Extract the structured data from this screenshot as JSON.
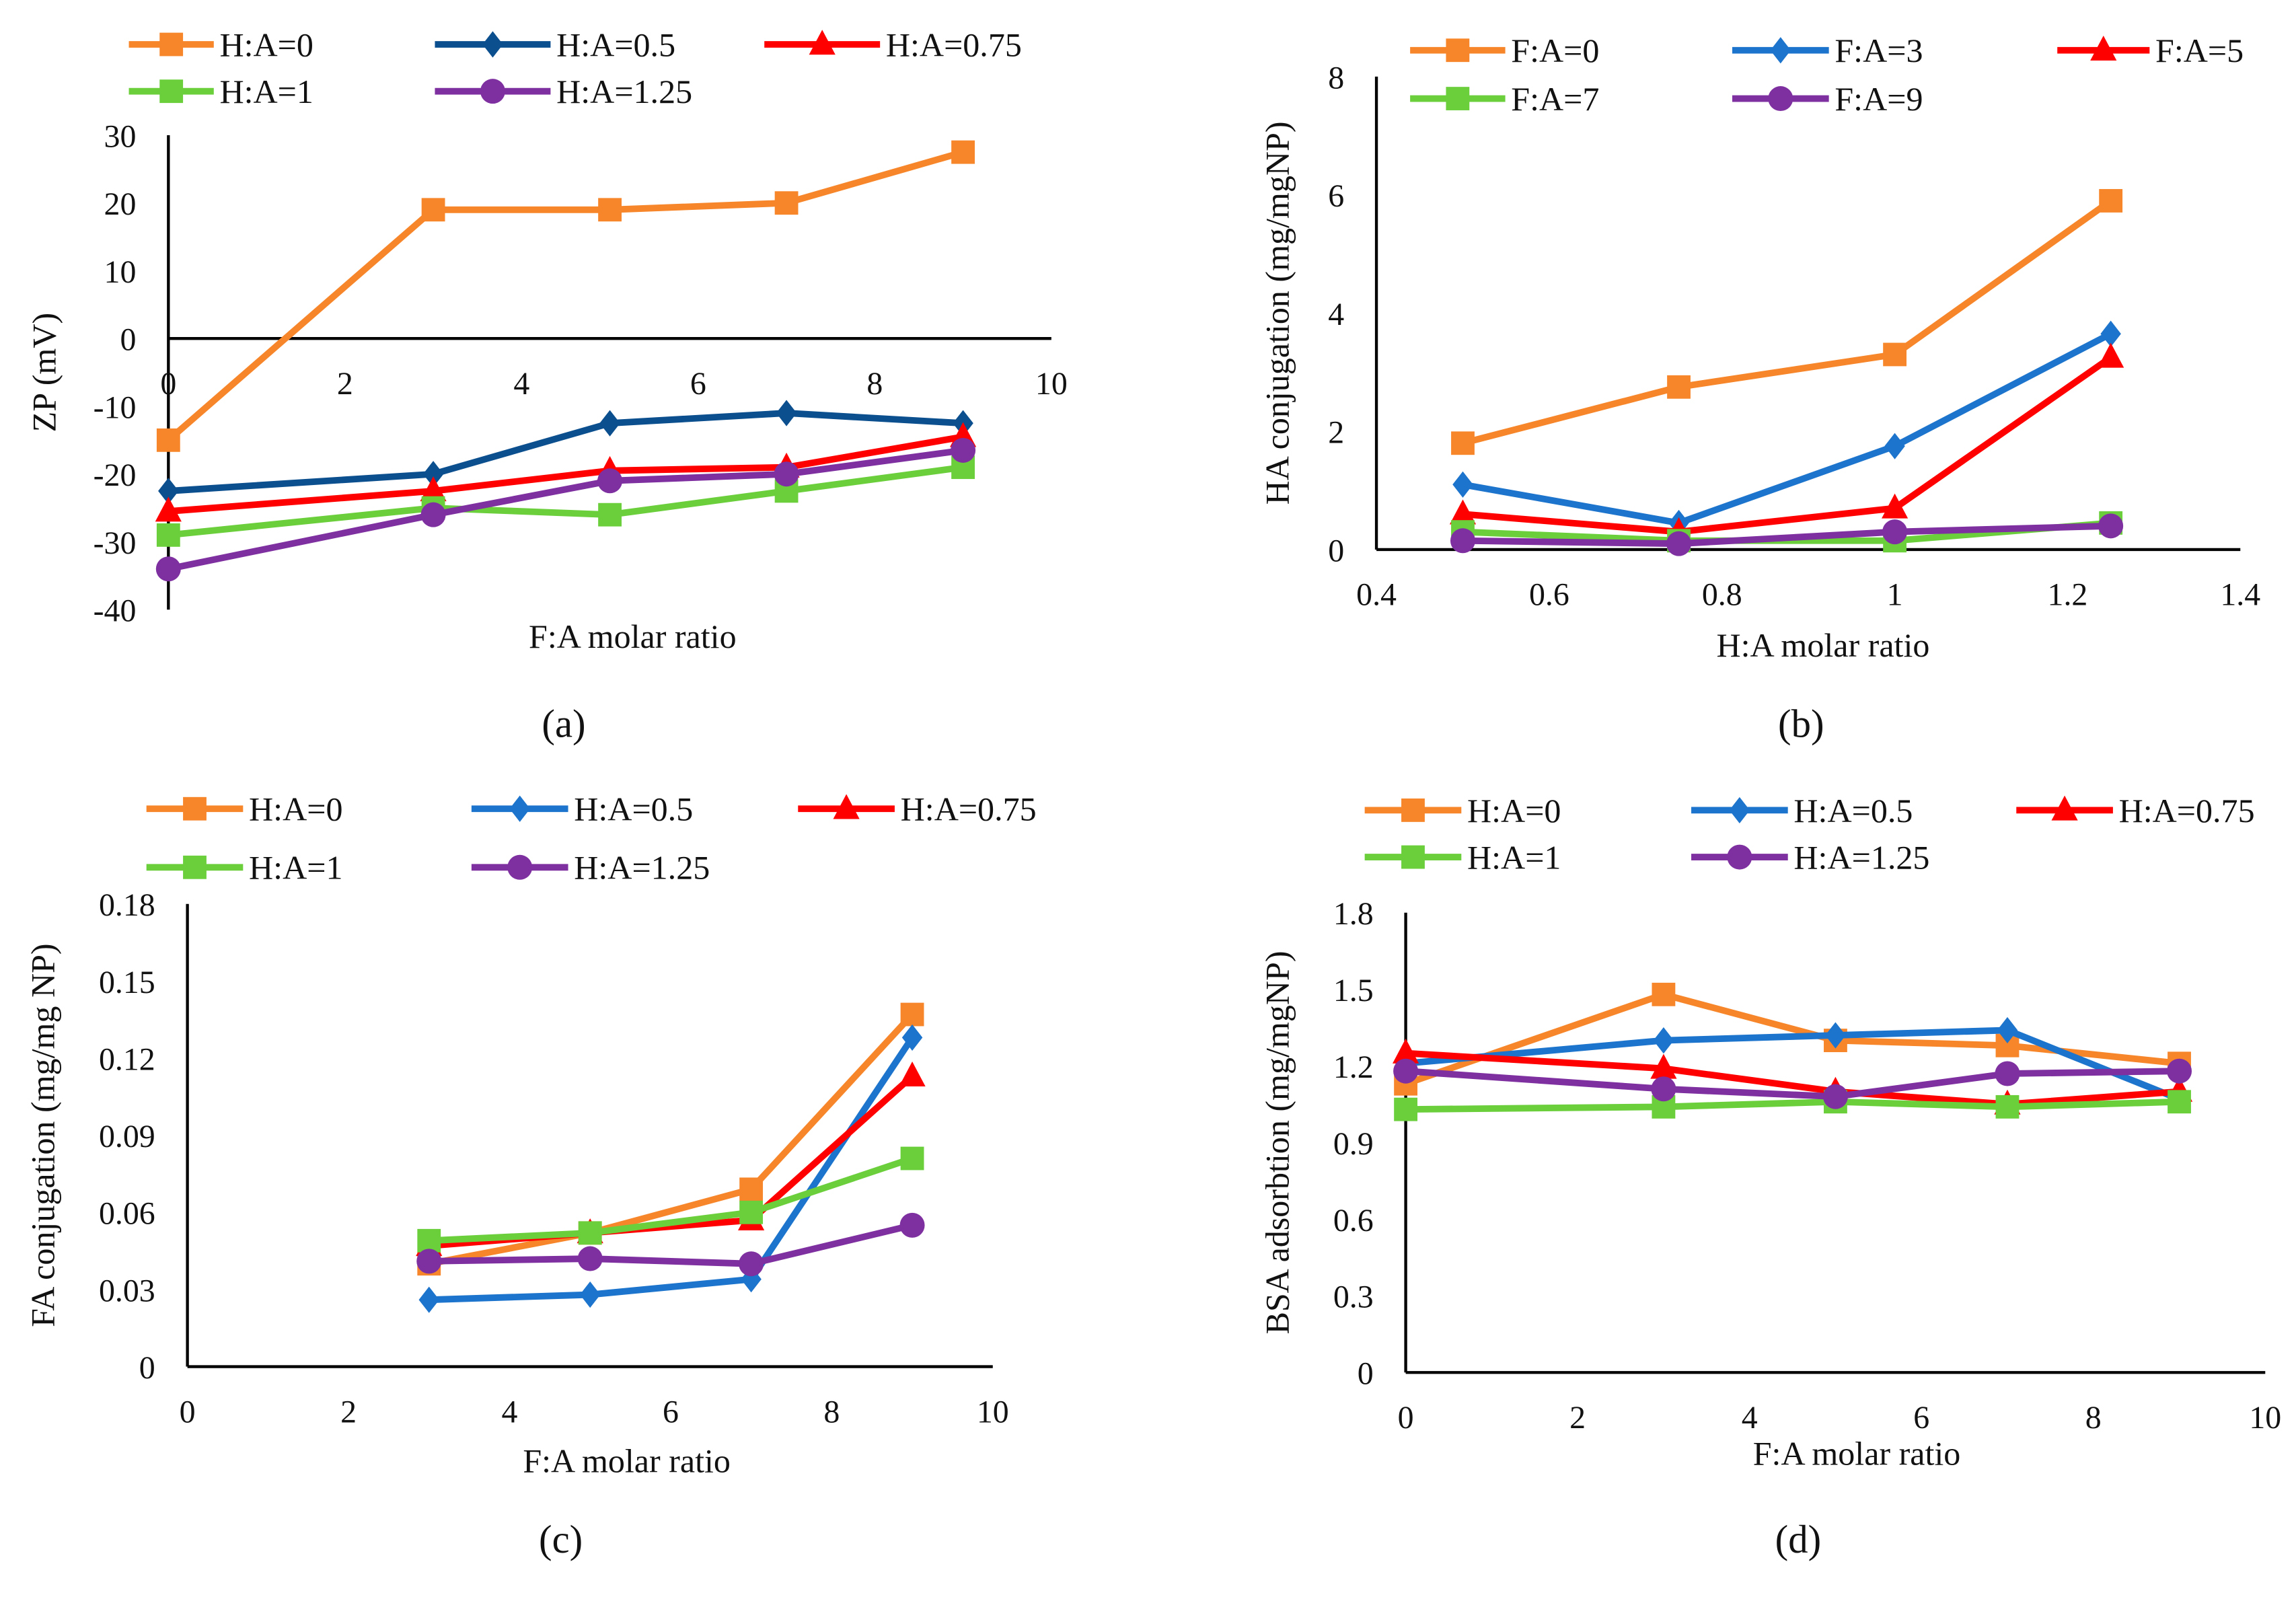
{
  "colors": {
    "orange": "#F7862A",
    "navy": "#0B4F8F",
    "blue": "#1C74CC",
    "red": "#FF0000",
    "green": "#6BCF3C",
    "purple": "#7E2FA0",
    "axis": "#000000"
  },
  "chart_data": [
    {
      "id": "a",
      "panel_label": "(a)",
      "type": "line",
      "title": "",
      "xlabel": "F:A molar ratio",
      "ylabel": "ZP (mV)",
      "xlim": [
        0,
        10
      ],
      "ylim": [
        -40,
        30
      ],
      "xticks": [
        0,
        2,
        4,
        6,
        8,
        10
      ],
      "yticks": [
        -40,
        -30,
        -20,
        -10,
        0,
        10,
        20,
        30
      ],
      "x": [
        0,
        3,
        5,
        7,
        9
      ],
      "series": [
        {
          "name": "H:A=0",
          "color": "orange",
          "marker": "square",
          "values": [
            -15,
            19,
            19,
            20,
            27.5
          ]
        },
        {
          "name": "H:A=0.5",
          "color": "navy",
          "marker": "diamond",
          "values": [
            -22.5,
            -20,
            -12.5,
            -11,
            -12.5
          ]
        },
        {
          "name": "H:A=0.75",
          "color": "red",
          "marker": "triangle",
          "values": [
            -25.5,
            -22.5,
            -19.5,
            -19,
            -14.5
          ]
        },
        {
          "name": "H:A=1",
          "color": "green",
          "marker": "square",
          "values": [
            -29,
            -25,
            -26,
            -22.5,
            -19
          ]
        },
        {
          "name": "H:A=1.25",
          "color": "purple",
          "marker": "circle",
          "values": [
            -34,
            -26,
            -21,
            -20,
            -16.5
          ]
        }
      ],
      "legend": "top"
    },
    {
      "id": "b",
      "panel_label": "(b)",
      "type": "line",
      "title": "",
      "xlabel": "H:A molar ratio",
      "ylabel": "HA conjugation  (mg/mgNP)",
      "xlim": [
        0.4,
        1.4
      ],
      "ylim": [
        0,
        8
      ],
      "xticks": [
        0.4,
        0.6,
        0.8,
        1,
        1.2,
        1.4
      ],
      "yticks": [
        0,
        2,
        4,
        6,
        8
      ],
      "x": [
        0.5,
        0.75,
        1,
        1.25
      ],
      "series": [
        {
          "name": "F:A=0",
          "color": "orange",
          "marker": "square",
          "values": [
            1.8,
            2.75,
            3.3,
            5.9
          ]
        },
        {
          "name": "F:A=3",
          "color": "blue",
          "marker": "diamond",
          "values": [
            1.1,
            0.45,
            1.75,
            3.65
          ]
        },
        {
          "name": "F:A=5",
          "color": "red",
          "marker": "triangle",
          "values": [
            0.6,
            0.3,
            0.7,
            3.25
          ]
        },
        {
          "name": "F:A=7",
          "color": "green",
          "marker": "square",
          "values": [
            0.3,
            0.15,
            0.15,
            0.45
          ]
        },
        {
          "name": "F:A=9",
          "color": "purple",
          "marker": "circle",
          "values": [
            0.15,
            0.1,
            0.3,
            0.4
          ]
        }
      ],
      "legend": "top"
    },
    {
      "id": "c",
      "panel_label": "(c)",
      "type": "line",
      "title": "",
      "xlabel": "F:A molar ratio",
      "ylabel": "FA conjugation (mg/mg NP)",
      "xlim": [
        0,
        10
      ],
      "ylim": [
        0,
        0.18
      ],
      "xticks": [
        0,
        2,
        4,
        6,
        8,
        10
      ],
      "yticks": [
        0,
        0.03,
        0.06,
        0.09,
        0.12,
        0.15,
        0.18
      ],
      "x": [
        3,
        5,
        7,
        9
      ],
      "series": [
        {
          "name": "H:A=0",
          "color": "orange",
          "marker": "square",
          "values": [
            0.04,
            0.052,
            0.069,
            0.137
          ]
        },
        {
          "name": "H:A=0.5",
          "color": "blue",
          "marker": "diamond",
          "values": [
            0.026,
            0.028,
            0.034,
            0.128
          ]
        },
        {
          "name": "H:A=0.75",
          "color": "red",
          "marker": "triangle",
          "values": [
            0.047,
            0.052,
            0.057,
            0.113
          ]
        },
        {
          "name": "H:A=1",
          "color": "green",
          "marker": "square",
          "values": [
            0.049,
            0.052,
            0.06,
            0.081
          ]
        },
        {
          "name": "H:A=1.25",
          "color": "purple",
          "marker": "circle",
          "values": [
            0.041,
            0.042,
            0.04,
            0.055
          ]
        }
      ],
      "legend": "top"
    },
    {
      "id": "d",
      "panel_label": "(d)",
      "type": "line",
      "title": "",
      "xlabel": "F:A molar ratio",
      "ylabel": "BSA adsorbtion (mg/mgNP)",
      "xlim": [
        0,
        10
      ],
      "ylim": [
        0,
        1.8
      ],
      "xticks": [
        0,
        2,
        4,
        6,
        8,
        10
      ],
      "yticks": [
        0,
        0.3,
        0.6,
        0.9,
        1.2,
        1.5,
        1.8
      ],
      "x": [
        0,
        3,
        5,
        7,
        9
      ],
      "series": [
        {
          "name": "H:A=0",
          "color": "orange",
          "marker": "square",
          "values": [
            1.13,
            1.48,
            1.3,
            1.28,
            1.21
          ]
        },
        {
          "name": "H:A=0.5",
          "color": "blue",
          "marker": "diamond",
          "values": [
            1.21,
            1.3,
            1.32,
            1.34,
            1.07
          ]
        },
        {
          "name": "H:A=0.75",
          "color": "red",
          "marker": "triangle",
          "values": [
            1.25,
            1.19,
            1.1,
            1.05,
            1.1
          ]
        },
        {
          "name": "H:A=1",
          "color": "green",
          "marker": "square",
          "values": [
            1.03,
            1.04,
            1.06,
            1.04,
            1.06
          ]
        },
        {
          "name": "H:A=1.25",
          "color": "purple",
          "marker": "circle",
          "values": [
            1.18,
            1.11,
            1.08,
            1.17,
            1.18
          ]
        }
      ],
      "legend": "top"
    }
  ]
}
